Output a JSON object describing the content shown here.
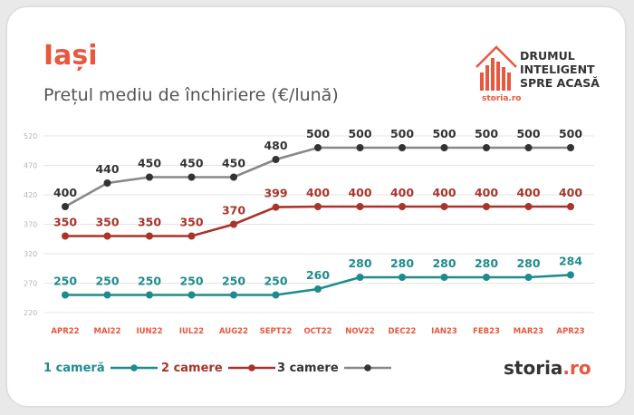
{
  "header": {
    "title": "Iași",
    "subtitle": "Prețul mediu de închiriere (€/lună)"
  },
  "brand": {
    "line1": "DRUMUL",
    "line2": "INTELIGENT",
    "line3": "SPRE ACASĂ",
    "small_logo": "storia.ro",
    "footer_logo_main": "storia",
    "footer_logo_suffix": ".ro",
    "accent_color": "#e8573e"
  },
  "chart_data": {
    "type": "line",
    "x": [
      "APR22",
      "MAI22",
      "IUN22",
      "IUL22",
      "AUG22",
      "SEPT22",
      "OCT22",
      "NOV22",
      "DEC22",
      "IAN23",
      "FEB23",
      "MAR23",
      "APR23"
    ],
    "y_ticks": [
      220,
      270,
      320,
      370,
      420,
      470,
      520
    ],
    "ylim": [
      220,
      520
    ],
    "grid": true,
    "legend_position": "bottom",
    "series": [
      {
        "name": "1 cameră",
        "color": "#1e8c8e",
        "values": [
          250,
          250,
          250,
          250,
          250,
          250,
          260,
          280,
          280,
          280,
          280,
          280,
          284
        ]
      },
      {
        "name": "2 camere",
        "color": "#a8342a",
        "values": [
          350,
          350,
          350,
          350,
          370,
          399,
          400,
          400,
          400,
          400,
          400,
          400,
          400
        ]
      },
      {
        "name": "3 camere",
        "color": "#333333",
        "line_color": "#888888",
        "values": [
          400,
          440,
          450,
          450,
          450,
          480,
          500,
          500,
          500,
          500,
          500,
          500,
          500
        ]
      }
    ]
  }
}
